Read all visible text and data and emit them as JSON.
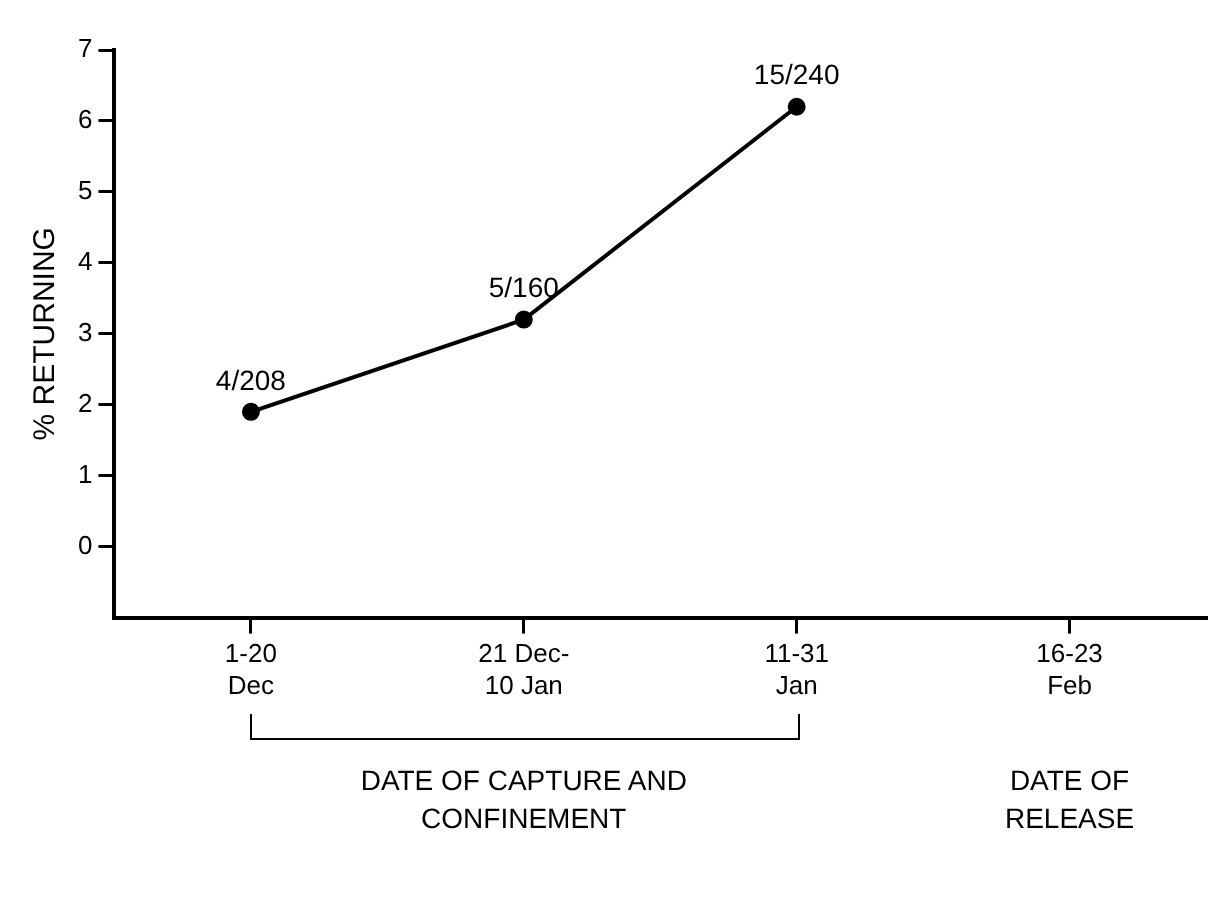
{
  "chart_data": {
    "type": "line",
    "ylabel": "% RETURNING",
    "xlabel": "DATE OF CAPTURE AND CONFINEMENT",
    "annotations": [
      "DATE OF RELEASE"
    ],
    "categories": [
      "1-20\nDec",
      "21 Dec-\n10 Jan",
      "11-31\nJan",
      "16-23\nFeb"
    ],
    "values": [
      1.9,
      3.2,
      6.2,
      null
    ],
    "value_labels": [
      "4/208",
      "5/160",
      "15/240",
      null
    ],
    "color": "#000000",
    "ylim": [
      -1,
      7
    ],
    "yticks": [
      0,
      1,
      2,
      3,
      4,
      5,
      6,
      7
    ],
    "grid": false,
    "legend": false,
    "marker": "circle",
    "line_style": "solid"
  }
}
